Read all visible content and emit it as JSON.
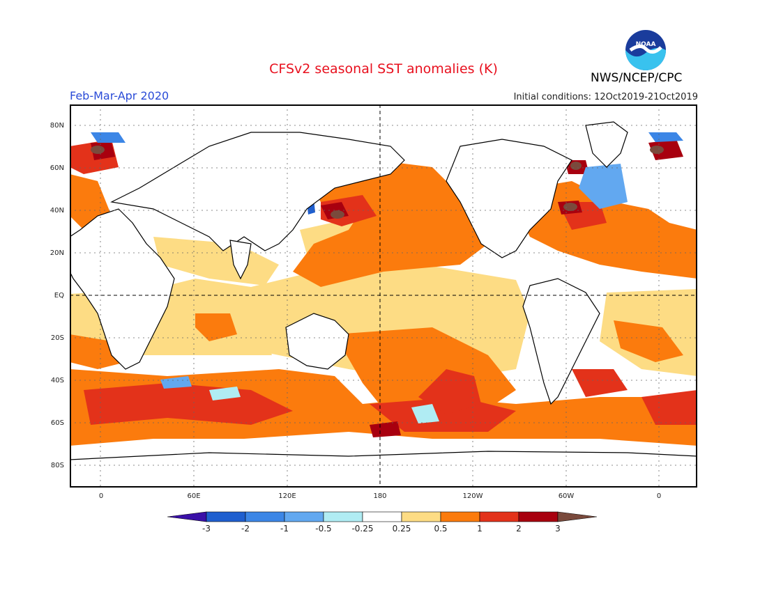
{
  "title": "CFSv2 seasonal SST anomalies (K)",
  "period": "Feb-Mar-Apr 2020",
  "agency": "NWS/NCEP/CPC",
  "logo_text": "NOAA",
  "initial_conditions": "Initial conditions: 12Oct2019-21Oct2019",
  "colors": {
    "title": "#e8101e",
    "period": "#2a4bd7",
    "ocean_neutral": "#ffffff",
    "land_outline": "#000000"
  },
  "lat_labels": [
    "80N",
    "60N",
    "40N",
    "20N",
    "EQ",
    "20S",
    "40S",
    "60S",
    "80S"
  ],
  "lon_labels": [
    "0",
    "60E",
    "120E",
    "180",
    "120W",
    "60W",
    "0"
  ],
  "colorbar": {
    "labels": [
      "-3",
      "-2",
      "-1",
      "-0.5",
      "-0.25",
      "0.25",
      "0.5",
      "1",
      "2",
      "3"
    ],
    "colors": [
      "#3a10a8",
      "#1f5fcf",
      "#3c86e6",
      "#62a8f0",
      "#b0ecf3",
      "#ffffff",
      "#fddc84",
      "#fb7b0d",
      "#e3321a",
      "#a8000f",
      "#7a4a3c"
    ]
  }
}
